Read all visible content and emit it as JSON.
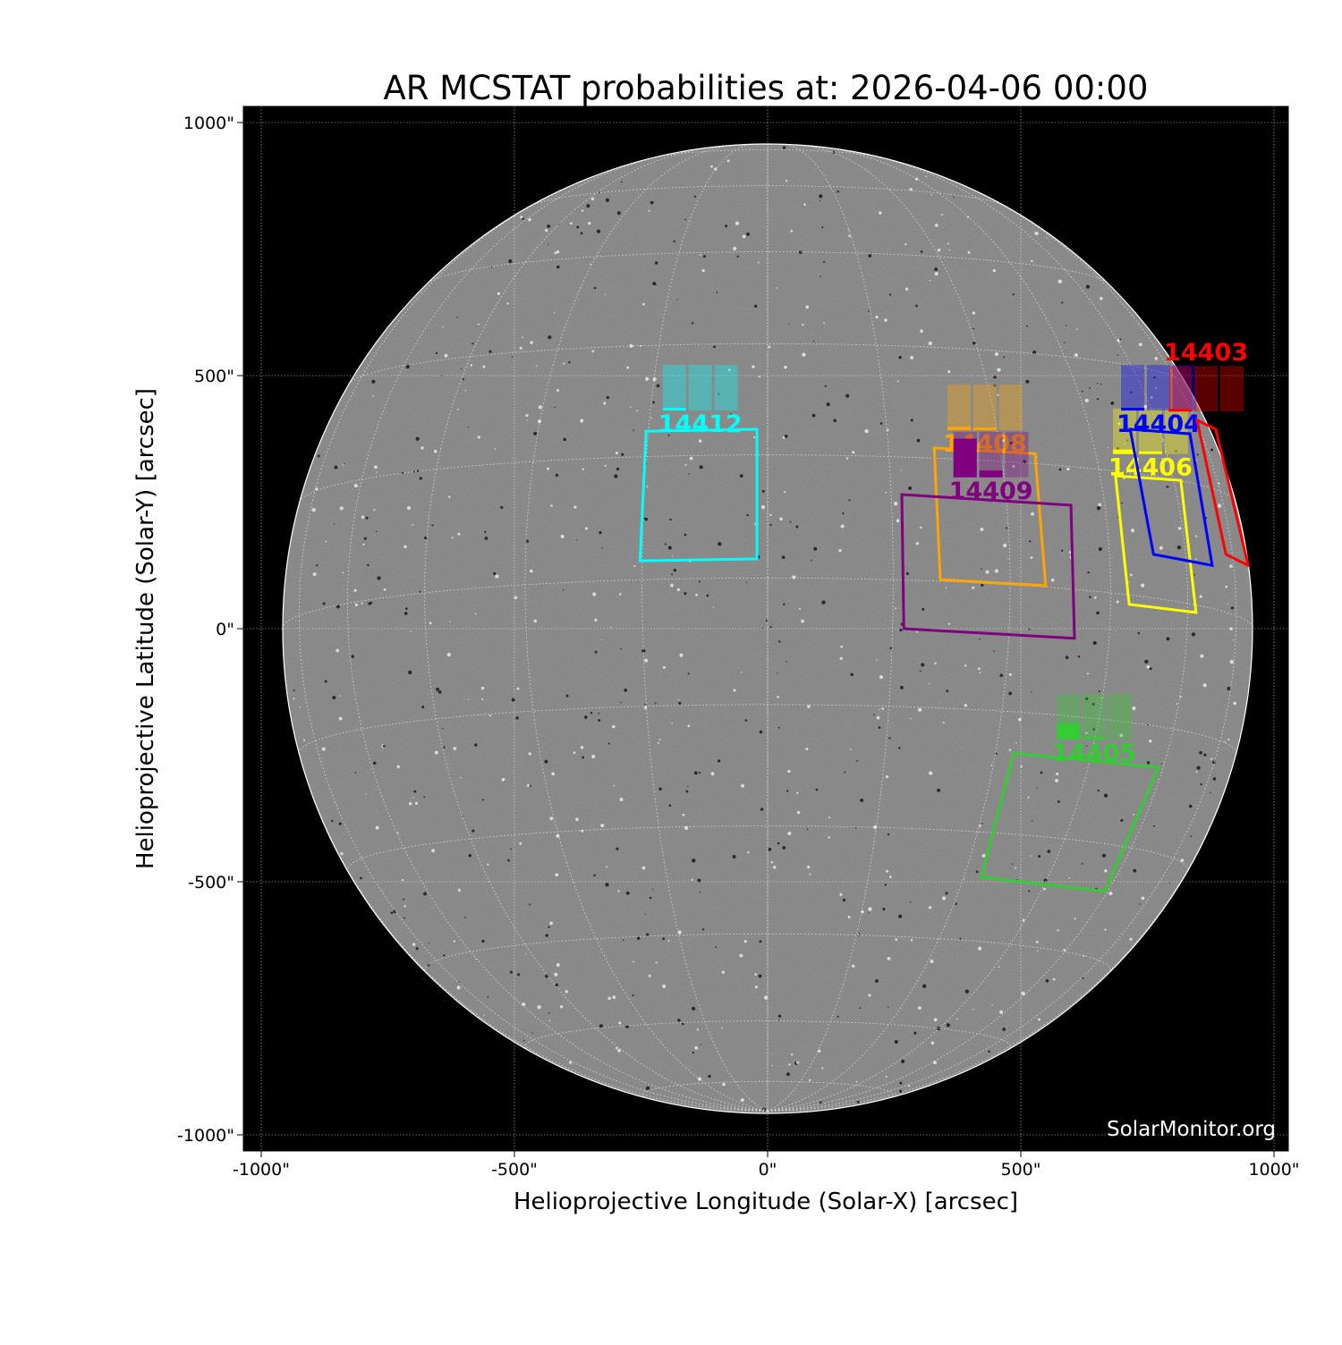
{
  "chart_data": {
    "type": "image-map",
    "title": "AR MCSTAT probabilities at: 2026-04-06 00:00",
    "xlabel": "Helioprojective Longitude (Solar-X) [arcsec]",
    "ylabel": "Helioprojective Latitude (Solar-Y) [arcsec]",
    "xlim": [
      -1032,
      1032
    ],
    "ylim": [
      -1032,
      1032
    ],
    "x_ticks": [
      "-1000\"",
      "-500\"",
      "0\"",
      "500\"",
      "1000\""
    ],
    "y_ticks": [
      "1000\"",
      "500\"",
      "0\"",
      "-500\"",
      "-1000\""
    ],
    "tick_values": [
      -1000,
      -500,
      0,
      500,
      1000
    ],
    "grid": true,
    "solar_radius_arcsec": 958,
    "watermark": "SolarMonitor.org",
    "bar_order": [
      "C",
      "M",
      "X"
    ],
    "regions": [
      {
        "number": "14412",
        "color": "#00ffff",
        "probabilities": [
          5,
          0,
          0
        ],
        "box": [
          [
            -240,
            390
          ],
          [
            -21,
            394
          ],
          [
            -21,
            138
          ],
          [
            -252,
            134
          ]
        ],
        "bars_anchor": [
          -207,
          521
        ]
      },
      {
        "number": "14408",
        "color": "#ffa500",
        "probabilities": [
          8,
          2,
          0
        ],
        "box": [
          [
            329,
            357
          ],
          [
            528,
            346
          ],
          [
            549,
            85
          ],
          [
            341,
            97
          ]
        ],
        "bars_anchor": [
          355,
          482
        ]
      },
      {
        "number": "14409",
        "color": "#800080",
        "probabilities": [
          85,
          15,
          0
        ],
        "box": [
          [
            265,
            265
          ],
          [
            599,
            244
          ],
          [
            606,
            -19
          ],
          [
            269,
            0
          ]
        ],
        "bars_anchor": [
          367,
          389
        ]
      },
      {
        "number": "14406",
        "color": "#ffff00",
        "probabilities": [
          10,
          1,
          0
        ],
        "box": [
          [
            687,
            302
          ],
          [
            816,
            293
          ],
          [
            846,
            32
          ],
          [
            714,
            48
          ]
        ],
        "bars_anchor": [
          682,
          435
        ]
      },
      {
        "number": "14404",
        "color": "#0000ff",
        "probabilities": [
          5,
          0,
          0
        ],
        "box": [
          [
            716,
            394
          ],
          [
            834,
            385
          ],
          [
            878,
            125
          ],
          [
            762,
            147
          ]
        ],
        "bars_anchor": [
          698,
          521
        ]
      },
      {
        "number": "14403",
        "color": "#ff0000",
        "probabilities": [
          3,
          0,
          0
        ],
        "box": [
          [
            848,
            412
          ],
          [
            885,
            394
          ],
          [
            949,
            125
          ],
          [
            905,
            147
          ]
        ],
        "bars_anchor": [
          792,
          519
        ]
      },
      {
        "number": "14405",
        "color": "#32cd32",
        "probabilities": [
          35,
          6,
          0
        ],
        "box": [
          [
            486,
            -246
          ],
          [
            772,
            -274
          ],
          [
            666,
            -519
          ],
          [
            422,
            -491
          ]
        ],
        "bars_anchor": [
          571,
          -129
        ]
      }
    ]
  }
}
